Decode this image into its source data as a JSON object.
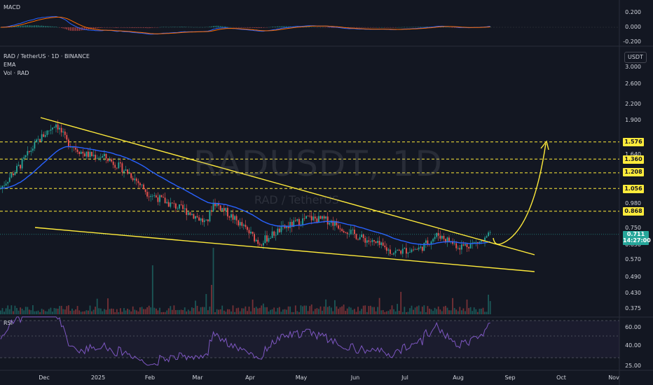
{
  "symbol_line": "RAD / TetherUS · 1D · BINANCE",
  "indicators": [
    "EMA",
    "Vol · RAD"
  ],
  "macd_label": "MACD",
  "rsi_label": "RSI",
  "watermark": "RADUSDT, 1D",
  "watermark_sub": "RAD / TetherUS",
  "currency_button": "USDT",
  "price_axis_ticks": [
    "3.000",
    "2.600",
    "2.200",
    "1.900",
    "1.640",
    "0.980",
    "0.750",
    "0.650",
    "0.570",
    "0.490",
    "0.430",
    "0.375"
  ],
  "macd_axis_ticks": [
    "0.200",
    "0.000",
    "-0.200"
  ],
  "rsi_axis_ticks": [
    "60.00",
    "40.00",
    "25.00"
  ],
  "level_labels": [
    "1.576",
    "1.360",
    "1.208",
    "1.056",
    "0.868"
  ],
  "current_price": "0.711",
  "countdown": "14:27:00",
  "x_axis_labels": [
    "Dec",
    "2025",
    "Feb",
    "Mar",
    "Apr",
    "May",
    "Jun",
    "Jul",
    "Aug",
    "Sep",
    "Oct",
    "Nov"
  ],
  "colors": {
    "background": "#131722",
    "up": "#26a69a",
    "down": "#ef5350",
    "ema": "#2962ff",
    "trendline": "#ffeb3b",
    "rsi": "#7e57c2",
    "macd_line": "#2962ff",
    "signal_line": "#ff6d00"
  },
  "chart_data": {
    "type": "candlestick",
    "title": "RADUSDT, 1D",
    "x_range": [
      "Dec",
      "Nov"
    ],
    "y_scale": "log",
    "y_range": [
      0.375,
      3.0
    ],
    "horizontal_levels": [
      1.576,
      1.36,
      1.208,
      1.056,
      0.868
    ],
    "current_price": 0.711,
    "price_path_approx": [
      {
        "date": "Nov",
        "price": 1.05
      },
      {
        "date": "Dec",
        "price": 1.75
      },
      {
        "date": "Dec",
        "price": 1.9
      },
      {
        "date": "2025",
        "price": 1.35
      },
      {
        "date": "Feb",
        "price": 1.15
      },
      {
        "date": "Feb",
        "price": 0.95
      },
      {
        "date": "Mar",
        "price": 0.85
      },
      {
        "date": "Apr",
        "price": 0.68
      },
      {
        "date": "May",
        "price": 0.82
      },
      {
        "date": "Jun",
        "price": 0.72
      },
      {
        "date": "Jul",
        "price": 0.62
      },
      {
        "date": "Aug",
        "price": 0.68
      },
      {
        "date": "Aug",
        "price": 0.711
      }
    ],
    "rsi_range": [
      20,
      75
    ],
    "rsi_levels": [
      30,
      50,
      70
    ],
    "macd_range": [
      -0.25,
      0.3
    ]
  }
}
